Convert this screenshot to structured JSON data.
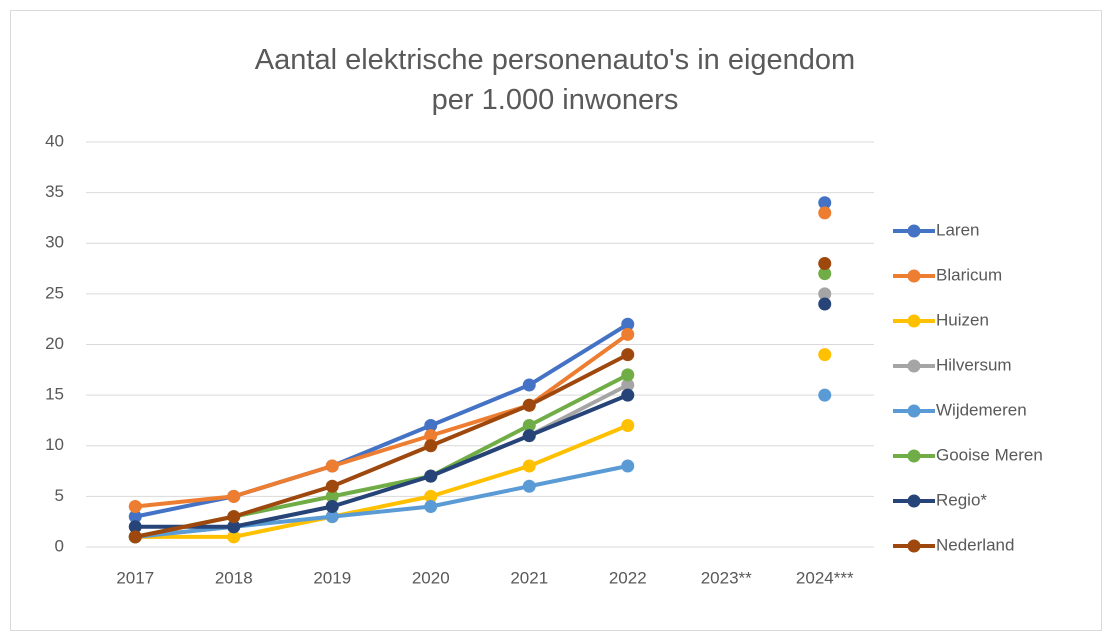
{
  "chart_data": {
    "type": "line",
    "title": "Aantal elektrische personenauto's in eigendom per 1.000 inwoners",
    "categories": [
      "2017",
      "2018",
      "2019",
      "2020",
      "2021",
      "2022",
      "2023**",
      "2024***"
    ],
    "series": [
      {
        "name": "Laren",
        "color": "#4472c4",
        "values": [
          3,
          5,
          8,
          12,
          16,
          22,
          null,
          34
        ]
      },
      {
        "name": "Blaricum",
        "color": "#ed7d31",
        "values": [
          4,
          5,
          8,
          11,
          14,
          21,
          null,
          33
        ]
      },
      {
        "name": "Huizen",
        "color": "#ffc000",
        "values": [
          1,
          1,
          3,
          5,
          8,
          12,
          null,
          19
        ]
      },
      {
        "name": "Hilversum",
        "color": "#a5a5a5",
        "values": [
          1,
          2,
          4,
          7,
          11,
          16,
          null,
          25
        ]
      },
      {
        "name": "Wijdemeren",
        "color": "#5b9bd5",
        "values": [
          1,
          2,
          3,
          4,
          6,
          8,
          null,
          15
        ]
      },
      {
        "name": "Gooise Meren",
        "color": "#70ad47",
        "values": [
          1,
          3,
          5,
          7,
          12,
          17,
          null,
          27
        ]
      },
      {
        "name": "Regio*",
        "color": "#264478",
        "values": [
          2,
          2,
          4,
          7,
          11,
          15,
          null,
          24
        ]
      },
      {
        "name": "Nederland",
        "color": "#9e480e",
        "values": [
          1,
          3,
          6,
          10,
          14,
          19,
          null,
          28
        ]
      }
    ],
    "ylim": [
      0,
      40
    ],
    "yticks": [
      0,
      5,
      10,
      15,
      20,
      25,
      30,
      35,
      40
    ],
    "grid": true,
    "legend": "right"
  }
}
